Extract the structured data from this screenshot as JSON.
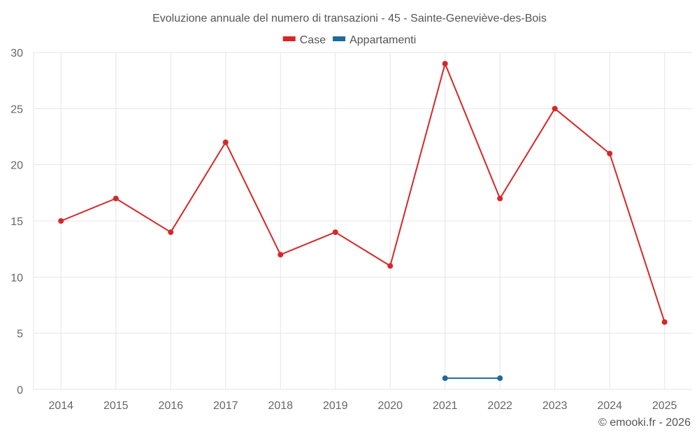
{
  "chart_data": {
    "type": "line",
    "title": "Evoluzione annuale del numero di transazioni - 45 - Sainte-Geneviève-des-Bois",
    "categories": [
      "2014",
      "2015",
      "2016",
      "2017",
      "2018",
      "2019",
      "2020",
      "2021",
      "2022",
      "2023",
      "2024",
      "2025"
    ],
    "series": [
      {
        "name": "Case",
        "color": "#d62728",
        "values": [
          15,
          17,
          14,
          22,
          12,
          14,
          11,
          29,
          17,
          25,
          21,
          6
        ]
      },
      {
        "name": "Appartamenti",
        "color": "#1f6a9a",
        "values": [
          null,
          null,
          null,
          null,
          null,
          null,
          null,
          1,
          1,
          null,
          null,
          null
        ]
      }
    ],
    "ylim": [
      0,
      30
    ],
    "yticks": [
      0,
      5,
      10,
      15,
      20,
      25,
      30
    ],
    "xlabel": "",
    "ylabel": "",
    "legend": "top-center",
    "grid": true
  },
  "credit": "© emooki.fr - 2026"
}
